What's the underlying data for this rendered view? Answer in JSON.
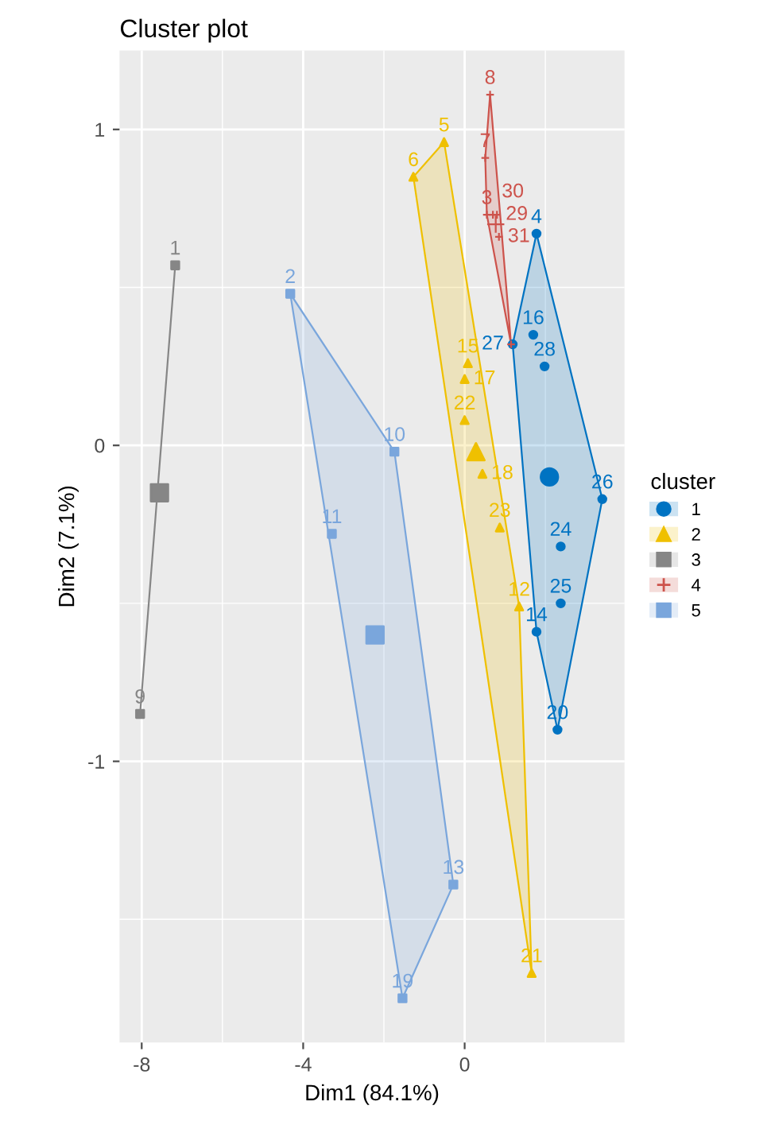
{
  "chart_data": {
    "type": "scatter",
    "title": "Cluster plot",
    "xlabel": "Dim1 (84.1%)",
    "ylabel": "Dim2 (7.1%)",
    "legend_title": "cluster",
    "legend": "right",
    "grid": true,
    "xlim": [
      -8.55,
      3.96
    ],
    "ylim": [
      -1.89,
      1.25
    ],
    "xticks": [
      -8,
      -4,
      0
    ],
    "yticks": [
      -1,
      0,
      1
    ],
    "series": [
      {
        "type": "area",
        "color": "#0073c2",
        "x": [
          1.78,
          3.41,
          2.3,
          1.78,
          1.19,
          1.78
        ],
        "values": [
          0.67,
          -0.17,
          -0.9,
          -0.59,
          0.32,
          0.67
        ]
      },
      {
        "type": "area",
        "color": "#efc000",
        "x": [
          -1.27,
          -0.51,
          1.35,
          1.66,
          -1.27
        ],
        "values": [
          0.85,
          0.96,
          -0.51,
          -1.67,
          0.85
        ]
      },
      {
        "type": "line",
        "color": "#868686",
        "x": [
          -7.17,
          -8.04
        ],
        "values": [
          0.57,
          -0.85
        ]
      },
      {
        "type": "area",
        "color": "#cd534c",
        "x": [
          0.63,
          1.15,
          0.55,
          0.51,
          0.63
        ],
        "values": [
          1.11,
          0.32,
          0.73,
          0.91,
          1.11
        ]
      },
      {
        "type": "area",
        "color": "#7aa6dc",
        "x": [
          -4.32,
          -1.74,
          -0.28,
          -1.54,
          -4.32
        ],
        "values": [
          0.48,
          -0.02,
          -1.39,
          -1.75,
          0.48
        ]
      },
      {
        "name": "1",
        "color": "#0073c2",
        "marker": "circle",
        "x": [
          1.78,
          1.7,
          1.19,
          1.98,
          3.41,
          2.38,
          2.38,
          1.78,
          2.3
        ],
        "values": [
          0.67,
          0.35,
          0.32,
          0.25,
          -0.17,
          -0.32,
          -0.5,
          -0.59,
          -0.9
        ]
      },
      {
        "name": "2",
        "color": "#efc000",
        "marker": "triangle",
        "x": [
          -0.51,
          -1.27,
          0.08,
          0.0,
          0.0,
          0.44,
          0.87,
          1.35,
          1.66
        ],
        "values": [
          0.96,
          0.85,
          0.26,
          0.21,
          0.08,
          -0.09,
          -0.26,
          -0.51,
          -1.67
        ]
      },
      {
        "name": "3",
        "color": "#868686",
        "marker": "square",
        "x": [
          -7.17,
          -8.04
        ],
        "values": [
          0.57,
          -0.85
        ]
      },
      {
        "name": "4",
        "color": "#cd534c",
        "marker": "cross",
        "x": [
          0.63,
          0.51,
          0.55,
          0.7,
          0.8,
          0.85,
          1.15
        ],
        "values": [
          1.11,
          0.91,
          0.73,
          0.73,
          0.73,
          0.66,
          0.32
        ]
      },
      {
        "name": "5",
        "color": "#7aa6dc",
        "marker": "square",
        "x": [
          -4.32,
          -1.74,
          -3.29,
          -0.28,
          -1.54
        ],
        "values": [
          0.48,
          -0.02,
          -0.28,
          -1.39,
          -1.75
        ]
      },
      {
        "color": "#0073c2",
        "marker": "circle",
        "x": [
          2.1
        ],
        "values": [
          -0.1
        ]
      },
      {
        "color": "#efc000",
        "marker": "triangle",
        "x": [
          0.28
        ],
        "values": [
          -0.02
        ]
      },
      {
        "color": "#868686",
        "marker": "square",
        "x": [
          -7.56
        ],
        "values": [
          -0.15
        ]
      },
      {
        "color": "#cd534c",
        "marker": "cross",
        "x": [
          0.77
        ],
        "values": [
          0.7
        ]
      },
      {
        "color": "#7aa6dc",
        "marker": "square",
        "x": [
          -2.22
        ],
        "values": [
          -0.6
        ]
      }
    ],
    "annotations": [
      {
        "text": "4",
        "x": 1.78,
        "y": 0.67
      },
      {
        "text": "16",
        "x": 1.7,
        "y": 0.35
      },
      {
        "text": "27",
        "x": 1.19,
        "y": 0.32
      },
      {
        "text": "28",
        "x": 1.98,
        "y": 0.25
      },
      {
        "text": "26",
        "x": 3.41,
        "y": -0.17
      },
      {
        "text": "24",
        "x": 2.38,
        "y": -0.32
      },
      {
        "text": "25",
        "x": 2.38,
        "y": -0.5
      },
      {
        "text": "14",
        "x": 1.78,
        "y": -0.59
      },
      {
        "text": "20",
        "x": 2.3,
        "y": -0.9
      },
      {
        "text": "5",
        "x": -0.51,
        "y": 0.96
      },
      {
        "text": "6",
        "x": -1.27,
        "y": 0.85
      },
      {
        "text": "15",
        "x": 0.08,
        "y": 0.26
      },
      {
        "text": "17",
        "x": 0.0,
        "y": 0.21
      },
      {
        "text": "22",
        "x": 0.0,
        "y": 0.08
      },
      {
        "text": "18",
        "x": 0.44,
        "y": -0.09
      },
      {
        "text": "23",
        "x": 0.87,
        "y": -0.26
      },
      {
        "text": "12",
        "x": 1.35,
        "y": -0.51
      },
      {
        "text": "21",
        "x": 1.66,
        "y": -1.67
      },
      {
        "text": "1",
        "x": -7.17,
        "y": 0.57
      },
      {
        "text": "9",
        "x": -8.04,
        "y": -0.85
      },
      {
        "text": "8",
        "x": 0.63,
        "y": 1.11
      },
      {
        "text": "7",
        "x": 0.51,
        "y": 0.91
      },
      {
        "text": "3",
        "x": 0.55,
        "y": 0.73
      },
      {
        "text": "30",
        "x": 0.7,
        "y": 0.73
      },
      {
        "text": "29",
        "x": 0.8,
        "y": 0.73
      },
      {
        "text": "31",
        "x": 0.85,
        "y": 0.66
      },
      {
        "text": "2",
        "x": -4.32,
        "y": 0.48
      },
      {
        "text": "10",
        "x": -1.74,
        "y": -0.02
      },
      {
        "text": "11",
        "x": -3.29,
        "y": -0.28
      },
      {
        "text": "13",
        "x": -0.28,
        "y": -1.39
      },
      {
        "text": "19",
        "x": -1.54,
        "y": -1.75
      }
    ]
  }
}
